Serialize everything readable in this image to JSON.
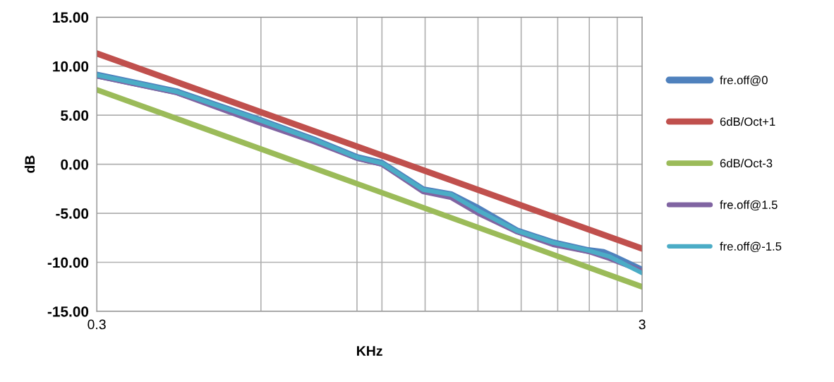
{
  "chart_data": {
    "type": "line",
    "xlabel": "KHz",
    "ylabel": "dB",
    "log": "x",
    "xlim": [
      0.3,
      3
    ],
    "ylim": [
      -15,
      15
    ],
    "xticks": [
      0.3,
      {
        "value": 0.6,
        "label": null
      },
      {
        "value": 0.9,
        "label": null
      },
      {
        "value": 1.0,
        "label": null
      },
      {
        "value": 1.2,
        "label": null
      },
      {
        "value": 1.5,
        "label": null
      },
      {
        "value": 1.8,
        "label": null
      },
      {
        "value": 2.1,
        "label": null
      },
      {
        "value": 2.4,
        "label": null
      },
      {
        "value": 2.7,
        "label": null
      },
      3
    ],
    "yticks": [
      {
        "value": -15,
        "label": "-15.00"
      },
      {
        "value": -10,
        "label": "-10.00"
      },
      {
        "value": -5,
        "label": "-5.00"
      },
      {
        "value": 0,
        "label": "0.00"
      },
      {
        "value": 5,
        "label": "5.00"
      },
      {
        "value": 10,
        "label": "10.00"
      },
      {
        "value": 15,
        "label": "15.00"
      }
    ],
    "grid": true,
    "legend": "right",
    "marker": "none",
    "line_style": "solid",
    "series": [
      {
        "name": "fre.off@0",
        "color": "#4f81bd",
        "x": [
          0.3,
          0.42,
          0.59,
          0.75,
          0.9,
          1.0,
          1.19,
          1.34,
          1.5,
          1.77,
          2.06,
          2.39,
          2.55,
          2.65,
          3.0
        ],
        "values": [
          9.1,
          7.4,
          4.6,
          2.5,
          0.7,
          0.1,
          -2.6,
          -3.1,
          -4.5,
          -6.8,
          -8.0,
          -8.8,
          -9.0,
          -9.4,
          -10.8
        ]
      },
      {
        "name": "6dB/Oct+1",
        "color": "#c0504d",
        "x": [
          0.3,
          1.0,
          3.0
        ],
        "values": [
          11.3,
          0.9,
          -8.6
        ]
      },
      {
        "name": "6dB/Oct-3",
        "color": "#9bbb59",
        "x": [
          0.3,
          1.0,
          3.0
        ],
        "values": [
          7.6,
          -2.9,
          -12.5
        ]
      },
      {
        "name": "fre.off@1.5",
        "color": "#8064a2",
        "x": [
          0.3,
          0.42,
          0.59,
          0.75,
          0.9,
          1.0,
          1.19,
          1.34,
          1.5,
          1.77,
          2.06,
          2.39,
          2.61,
          3.0
        ],
        "values": [
          9.0,
          7.3,
          4.3,
          2.3,
          0.6,
          0.0,
          -2.8,
          -3.4,
          -5.0,
          -6.9,
          -8.2,
          -8.9,
          -9.6,
          -10.9
        ]
      },
      {
        "name": "fre.off@-1.5",
        "color": "#4bacc6",
        "x": [
          0.3,
          0.42,
          0.59,
          0.75,
          0.9,
          1.0,
          1.19,
          1.34,
          1.5,
          1.77,
          2.06,
          2.39,
          2.61,
          3.0
        ],
        "values": [
          9.1,
          7.4,
          4.6,
          2.5,
          0.7,
          0.1,
          -2.6,
          -3.1,
          -4.7,
          -6.8,
          -8.0,
          -8.8,
          -9.4,
          -11.1
        ]
      }
    ]
  }
}
